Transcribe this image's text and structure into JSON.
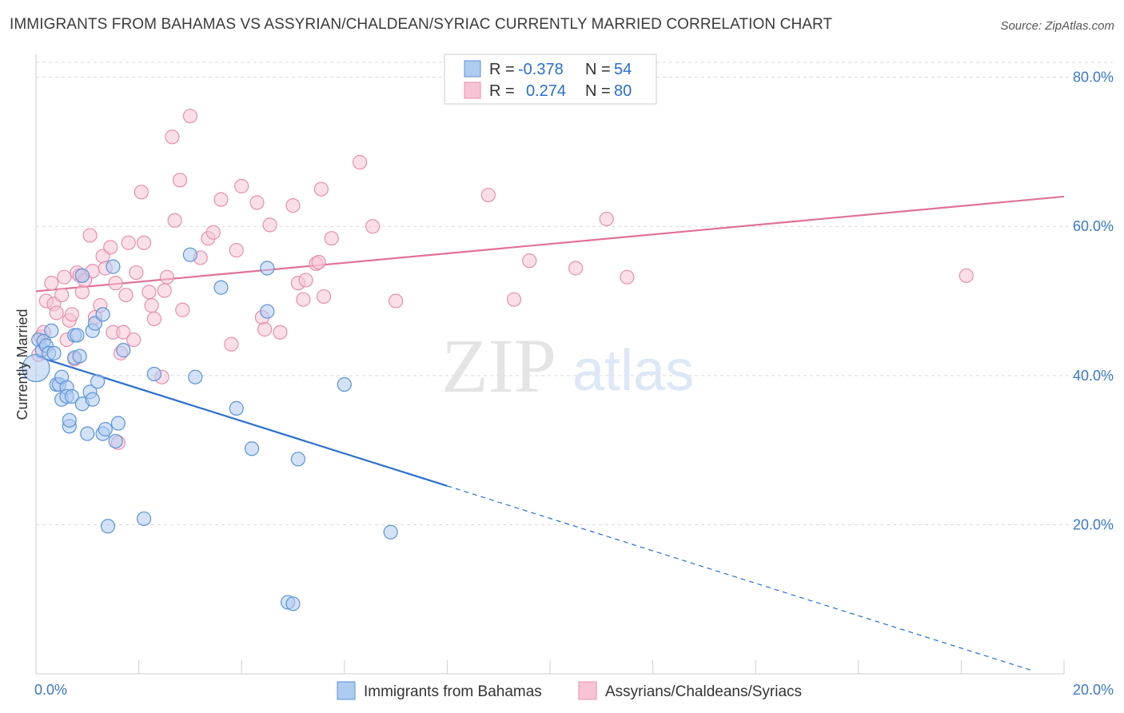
{
  "header": {
    "title": "IMMIGRANTS FROM BAHAMAS VS ASSYRIAN/CHALDEAN/SYRIAC CURRENTLY MARRIED CORRELATION CHART",
    "source": "Source: ZipAtlas.com"
  },
  "watermark": {
    "zip": "ZIP",
    "atlas": "atlas"
  },
  "legend": {
    "rows": [
      {
        "r_label": "R =",
        "r_value": "-0.378",
        "n_label": "N =",
        "n_value": "54"
      },
      {
        "r_label": "R =",
        "r_value": "0.274",
        "n_label": "N =",
        "n_value": "80"
      }
    ]
  },
  "colors": {
    "blue_fill": "#aecbf0",
    "blue_stroke": "#5b93d8",
    "blue_line": "#2a6fd0",
    "pink_fill": "#f7c4d5",
    "pink_stroke": "#e68fad",
    "pink_line": "#e07199",
    "grid": "#d9d9d9",
    "axis_label": "#3b78c6"
  },
  "chart_data": {
    "type": "scatter",
    "title": "IMMIGRANTS FROM BAHAMAS VS ASSYRIAN/CHALDEAN/SYRIAC CURRENTLY MARRIED CORRELATION CHART",
    "xlabel": "",
    "ylabel": "Currently Married",
    "xlim": [
      0,
      20
    ],
    "ylim": [
      0,
      82
    ],
    "x_tick_labels": [
      "0.0%",
      "20.0%"
    ],
    "y_ticks": [
      20,
      40,
      60,
      80
    ],
    "y_tick_labels": [
      "20.0%",
      "40.0%",
      "60.0%",
      "80.0%"
    ],
    "grid": true,
    "legend_position": "top-center",
    "series": [
      {
        "name": "Immigrants from Bahamas",
        "color": "#aecbf0",
        "R": -0.378,
        "N": 54,
        "trend": {
          "x0": 0,
          "y0": 42.6,
          "x1": 8.0,
          "y1": 25.2,
          "dashed_to_x": 19.4,
          "dashed_to_y": 0.4
        },
        "points": [
          [
            0,
            41
          ],
          [
            0.05,
            44.8
          ],
          [
            0.12,
            43.4
          ],
          [
            0.15,
            44.6
          ],
          [
            0.2,
            44
          ],
          [
            0.25,
            43
          ],
          [
            0.3,
            46
          ],
          [
            0.35,
            43
          ],
          [
            0.4,
            38.8
          ],
          [
            0.45,
            38.8
          ],
          [
            0.5,
            39.8
          ],
          [
            0.5,
            36.8
          ],
          [
            0.6,
            38.4
          ],
          [
            0.6,
            37.2
          ],
          [
            0.65,
            33.2
          ],
          [
            0.65,
            34
          ],
          [
            0.7,
            37.2
          ],
          [
            0.75,
            42.4
          ],
          [
            0.75,
            45.4
          ],
          [
            0.8,
            45.4
          ],
          [
            0.85,
            42.6
          ],
          [
            0.9,
            36.2
          ],
          [
            0.9,
            53.4
          ],
          [
            1.0,
            32.2
          ],
          [
            1.05,
            37.8
          ],
          [
            1.1,
            46
          ],
          [
            1.1,
            36.8
          ],
          [
            1.15,
            47
          ],
          [
            1.2,
            39.2
          ],
          [
            1.3,
            48.2
          ],
          [
            1.3,
            32.2
          ],
          [
            1.35,
            32.8
          ],
          [
            1.4,
            19.8
          ],
          [
            1.5,
            54.6
          ],
          [
            1.55,
            31.2
          ],
          [
            1.6,
            33.6
          ],
          [
            1.7,
            43.4
          ],
          [
            2.1,
            20.8
          ],
          [
            2.3,
            40.2
          ],
          [
            3.0,
            56.2
          ],
          [
            3.1,
            39.8
          ],
          [
            3.6,
            51.8
          ],
          [
            3.9,
            35.6
          ],
          [
            4.2,
            30.2
          ],
          [
            4.5,
            54.4
          ],
          [
            4.5,
            48.6
          ],
          [
            5.1,
            28.8
          ],
          [
            6.0,
            38.8
          ],
          [
            6.9,
            19
          ],
          [
            4.9,
            9.6
          ],
          [
            5.0,
            9.4
          ]
        ]
      },
      {
        "name": "Assyrians/Chaldeans/Syriacs",
        "color": "#f7c4d5",
        "R": 0.274,
        "N": 80,
        "trend": {
          "x0": 0,
          "y0": 51.3,
          "x1": 20,
          "y1": 64.0
        },
        "points": [
          [
            0.05,
            42.8
          ],
          [
            0.1,
            45.2
          ],
          [
            0.15,
            45.8
          ],
          [
            0.2,
            50
          ],
          [
            0.3,
            52.4
          ],
          [
            0.35,
            49.6
          ],
          [
            0.4,
            48.4
          ],
          [
            0.5,
            50.8
          ],
          [
            0.55,
            53.2
          ],
          [
            0.6,
            44.8
          ],
          [
            0.65,
            47.4
          ],
          [
            0.7,
            48.2
          ],
          [
            0.75,
            42.2
          ],
          [
            0.8,
            53.8
          ],
          [
            0.85,
            53.4
          ],
          [
            0.9,
            51.2
          ],
          [
            0.95,
            52.8
          ],
          [
            1.05,
            58.8
          ],
          [
            1.1,
            54
          ],
          [
            1.15,
            47.8
          ],
          [
            1.25,
            49.4
          ],
          [
            1.3,
            56
          ],
          [
            1.35,
            54.4
          ],
          [
            1.45,
            57.2
          ],
          [
            1.5,
            45.8
          ],
          [
            1.55,
            52.4
          ],
          [
            1.6,
            31
          ],
          [
            1.65,
            43
          ],
          [
            1.7,
            45.8
          ],
          [
            1.75,
            50.8
          ],
          [
            1.8,
            57.8
          ],
          [
            1.9,
            44.8
          ],
          [
            1.95,
            53.8
          ],
          [
            2.05,
            64.6
          ],
          [
            2.1,
            57.8
          ],
          [
            2.2,
            51.2
          ],
          [
            2.25,
            49.4
          ],
          [
            2.3,
            47.6
          ],
          [
            2.45,
            39.8
          ],
          [
            2.5,
            51.4
          ],
          [
            2.55,
            53.2
          ],
          [
            2.65,
            72
          ],
          [
            2.7,
            60.8
          ],
          [
            2.8,
            66.2
          ],
          [
            2.85,
            48.8
          ],
          [
            3.0,
            74.8
          ],
          [
            3.2,
            55.8
          ],
          [
            3.35,
            58.4
          ],
          [
            3.45,
            59.2
          ],
          [
            3.6,
            63.6
          ],
          [
            3.8,
            44.2
          ],
          [
            3.9,
            56.8
          ],
          [
            4.0,
            65.4
          ],
          [
            4.3,
            63.2
          ],
          [
            4.4,
            47.8
          ],
          [
            4.45,
            46.2
          ],
          [
            4.55,
            60.2
          ],
          [
            4.75,
            45.8
          ],
          [
            5.0,
            62.8
          ],
          [
            5.1,
            52.4
          ],
          [
            5.2,
            50.2
          ],
          [
            5.25,
            52.8
          ],
          [
            5.45,
            55
          ],
          [
            5.5,
            55.2
          ],
          [
            5.55,
            65
          ],
          [
            5.6,
            50.6
          ],
          [
            5.75,
            58.4
          ],
          [
            6.3,
            68.6
          ],
          [
            6.55,
            60
          ],
          [
            7.0,
            50
          ],
          [
            8.8,
            64.2
          ],
          [
            9.3,
            50.2
          ],
          [
            9.6,
            55.4
          ],
          [
            10.5,
            54.4
          ],
          [
            11.1,
            61
          ],
          [
            11.5,
            53.2
          ],
          [
            18.1,
            53.4
          ]
        ]
      }
    ]
  },
  "bottom_legend": [
    {
      "label": "Immigrants from Bahamas"
    },
    {
      "label": "Assyrians/Chaldeans/Syriacs"
    }
  ]
}
